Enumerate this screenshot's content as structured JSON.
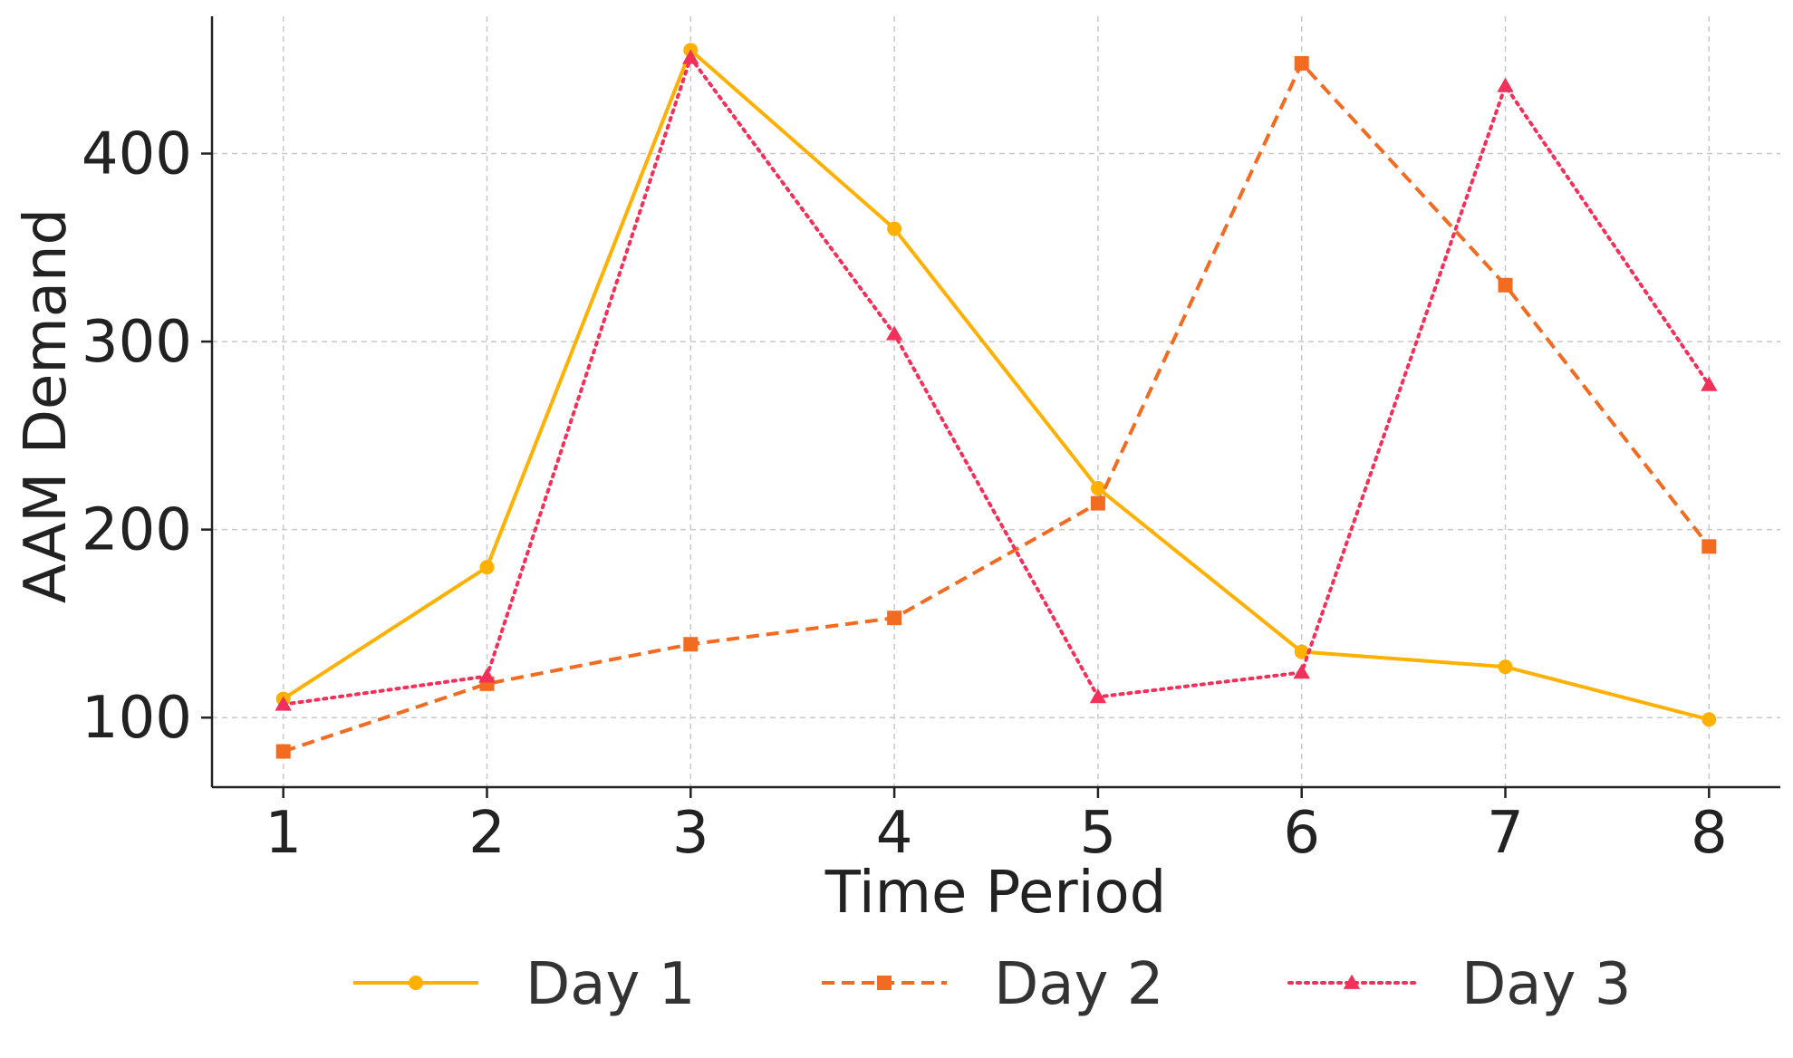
{
  "chart_data": {
    "type": "line",
    "title": "",
    "xlabel": "Time Period",
    "ylabel": "AAM Demand",
    "x": [
      1,
      2,
      3,
      4,
      5,
      6,
      7,
      8
    ],
    "xticks": [
      "1",
      "2",
      "3",
      "4",
      "5",
      "6",
      "7",
      "8"
    ],
    "yticks": [
      100,
      200,
      300,
      400
    ],
    "ylim": [
      63,
      473
    ],
    "xlim": [
      0.65,
      8.35
    ],
    "grid": true,
    "legend_position": "bottom-center",
    "series": [
      {
        "name": "Day 1",
        "values": [
          110,
          180,
          455,
          360,
          222,
          135,
          127,
          99
        ],
        "color": "#FFB000",
        "line_style": "solid",
        "marker": "circle"
      },
      {
        "name": "Day 2",
        "values": [
          82,
          118,
          139,
          153,
          214,
          448,
          330,
          191
        ],
        "color": "#F26B21",
        "line_style": "dashed",
        "marker": "square"
      },
      {
        "name": "Day 3",
        "values": [
          107,
          122,
          451,
          304,
          111,
          124,
          436,
          277
        ],
        "color": "#F2305A",
        "line_style": "dotted",
        "marker": "triangle"
      }
    ]
  }
}
